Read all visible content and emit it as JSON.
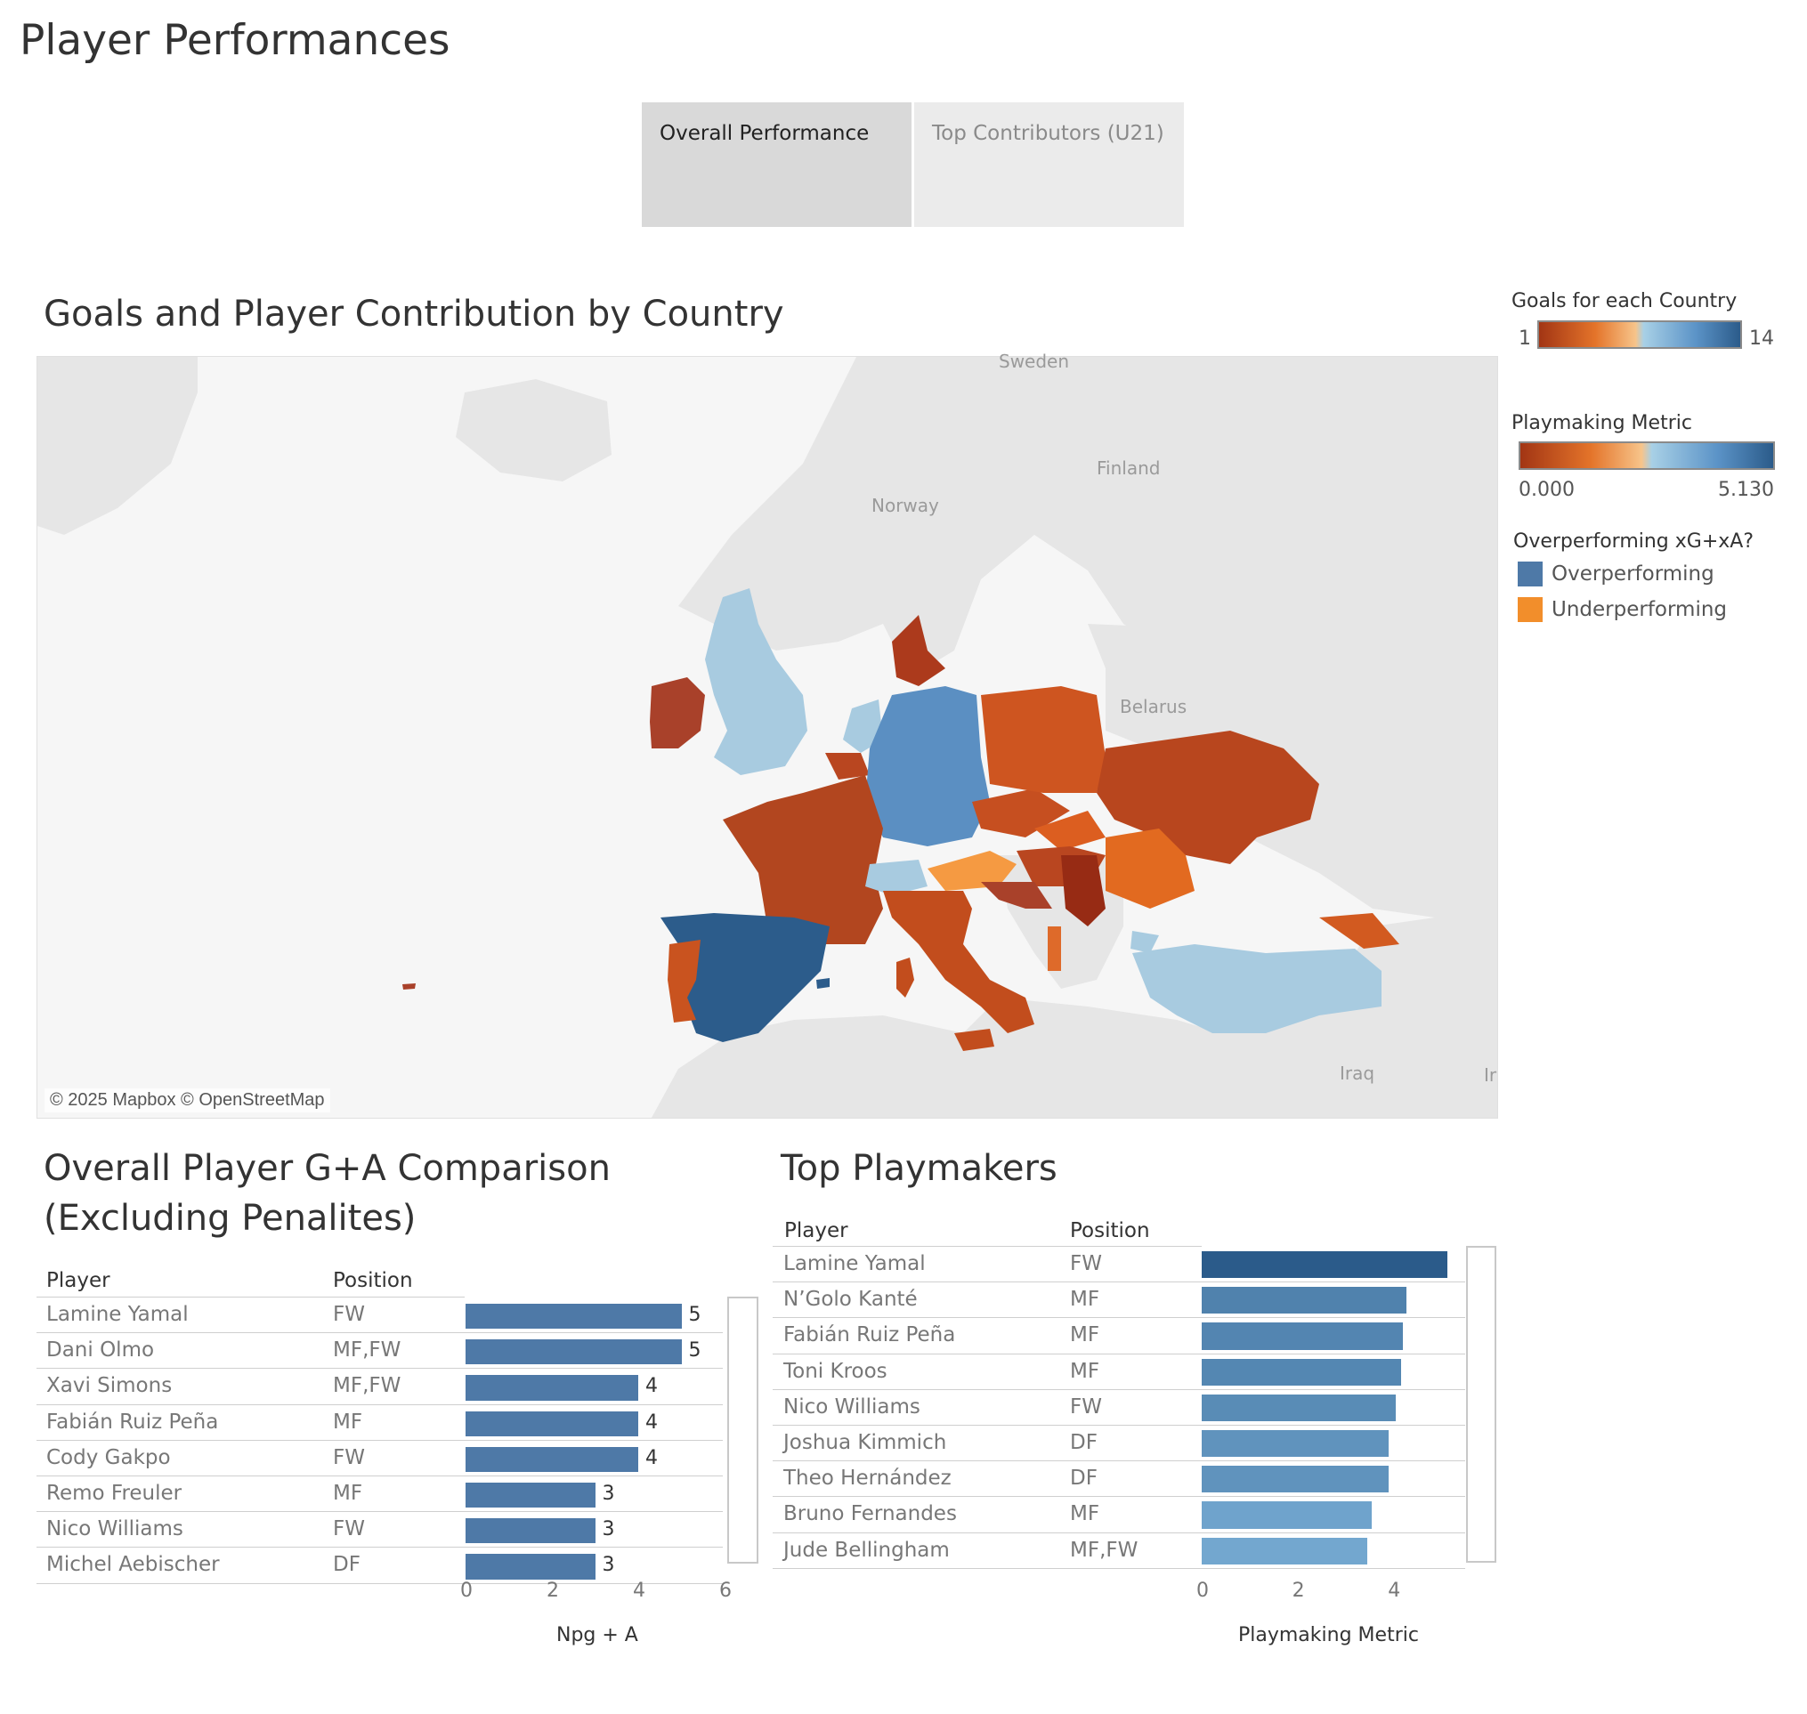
{
  "page": {
    "title": "Player Performances"
  },
  "tabs": [
    {
      "label": "Overall Performance",
      "active": true
    },
    {
      "label": "Top Contributors (U21)",
      "active": false
    }
  ],
  "map": {
    "title": "Goals and Player Contribution by Country",
    "attribution": "© 2025 Mapbox © OpenStreetMap",
    "place_labels": [
      "Sweden",
      "Finland",
      "Norway",
      "Belarus",
      "Iraq",
      "Ir"
    ]
  },
  "legends": {
    "goals": {
      "title": "Goals for each Country",
      "min": "1",
      "max": "14"
    },
    "playmaking": {
      "title": "Playmaking Metric",
      "min": "0.000",
      "max": "5.130"
    },
    "overperf": {
      "title": "Overperforming xG+xA?",
      "items": [
        {
          "label": "Overperforming",
          "color": "#4e79a7"
        },
        {
          "label": "Underperforming",
          "color": "#f28e2b"
        }
      ]
    }
  },
  "ga": {
    "title_line1": "Overall Player G+A Comparison",
    "title_line2": "(Excluding Penalites)",
    "col_player": "Player",
    "col_position": "Position",
    "axis_title": "Npg + A",
    "ticks": [
      "0",
      "2",
      "4",
      "6"
    ],
    "rows": [
      {
        "player": "Lamine Yamal",
        "position": "FW",
        "value": 5,
        "label": "5"
      },
      {
        "player": "Dani Olmo",
        "position": "MF,FW",
        "value": 5,
        "label": "5"
      },
      {
        "player": "Xavi Simons",
        "position": "MF,FW",
        "value": 4,
        "label": "4"
      },
      {
        "player": "Fabián Ruiz Peña",
        "position": "MF",
        "value": 4,
        "label": "4"
      },
      {
        "player": "Cody Gakpo",
        "position": "FW",
        "value": 4,
        "label": "4"
      },
      {
        "player": "Remo Freuler",
        "position": "MF",
        "value": 3,
        "label": "3"
      },
      {
        "player": "Nico Williams",
        "position": "FW",
        "value": 3,
        "label": "3"
      },
      {
        "player": "Michel Aebischer",
        "position": "DF",
        "value": 3,
        "label": "3"
      }
    ]
  },
  "playmakers": {
    "title": "Top Playmakers",
    "col_player": "Player",
    "col_position": "Position",
    "axis_title": "Playmaking Metric",
    "ticks": [
      "0",
      "2",
      "4"
    ],
    "rows": [
      {
        "player": "Lamine Yamal",
        "position": "FW",
        "value": 5.13
      },
      {
        "player": "N’Golo Kanté",
        "position": "MF",
        "value": 4.28
      },
      {
        "player": "Fabián Ruiz Peña",
        "position": "MF",
        "value": 4.2
      },
      {
        "player": "Toni Kroos",
        "position": "MF",
        "value": 4.17
      },
      {
        "player": "Nico Williams",
        "position": "FW",
        "value": 4.06
      },
      {
        "player": "Joshua Kimmich",
        "position": "DF",
        "value": 3.9
      },
      {
        "player": "Theo Hernández",
        "position": "DF",
        "value": 3.9
      },
      {
        "player": "Bruno Fernandes",
        "position": "MF",
        "value": 3.55
      },
      {
        "player": "Jude Bellingham",
        "position": "MF,FW",
        "value": 3.46
      }
    ]
  },
  "colors": {
    "bar_ga": "#4e79a7",
    "overperforming": "#4e79a7",
    "underperforming": "#f28e2b",
    "diverging_low": "#a23514",
    "diverging_high": "#2b5b8a"
  }
}
